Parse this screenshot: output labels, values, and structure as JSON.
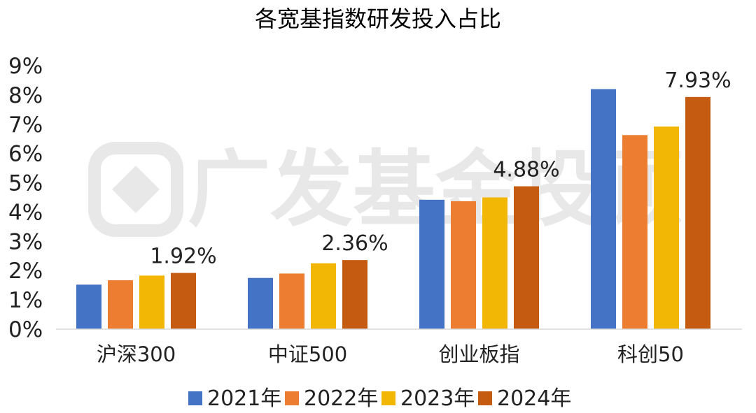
{
  "watermark": "广发基金投顾",
  "chart_data": {
    "type": "bar",
    "title": "各宽基指数研发投入占比",
    "xlabel": "",
    "ylabel": "",
    "ylim": [
      0,
      9
    ],
    "yticks": [
      "0%",
      "1%",
      "2%",
      "3%",
      "4%",
      "5%",
      "6%",
      "7%",
      "8%",
      "9%"
    ],
    "grid": false,
    "legend_position": "bottom",
    "categories": [
      "沪深300",
      "中证500",
      "创业板指",
      "科创50"
    ],
    "series": [
      {
        "name": "2021年",
        "color": "#4472c4",
        "values": [
          1.52,
          1.75,
          4.42,
          8.2
        ]
      },
      {
        "name": "2022年",
        "color": "#ed7d31",
        "values": [
          1.67,
          1.9,
          4.37,
          6.63
        ]
      },
      {
        "name": "2023年",
        "color": "#f2b705",
        "values": [
          1.83,
          2.25,
          4.5,
          6.92
        ]
      },
      {
        "name": "2024年",
        "color": "#c55a11",
        "values": [
          1.92,
          2.36,
          4.88,
          7.93
        ]
      }
    ],
    "data_labels": [
      {
        "category": "沪深300",
        "series": "2024年",
        "text": "1.92%"
      },
      {
        "category": "中证500",
        "series": "2024年",
        "text": "2.36%"
      },
      {
        "category": "创业板指",
        "series": "2024年",
        "text": "4.88%"
      },
      {
        "category": "科创50",
        "series": "2024年",
        "text": "7.93%"
      }
    ]
  }
}
